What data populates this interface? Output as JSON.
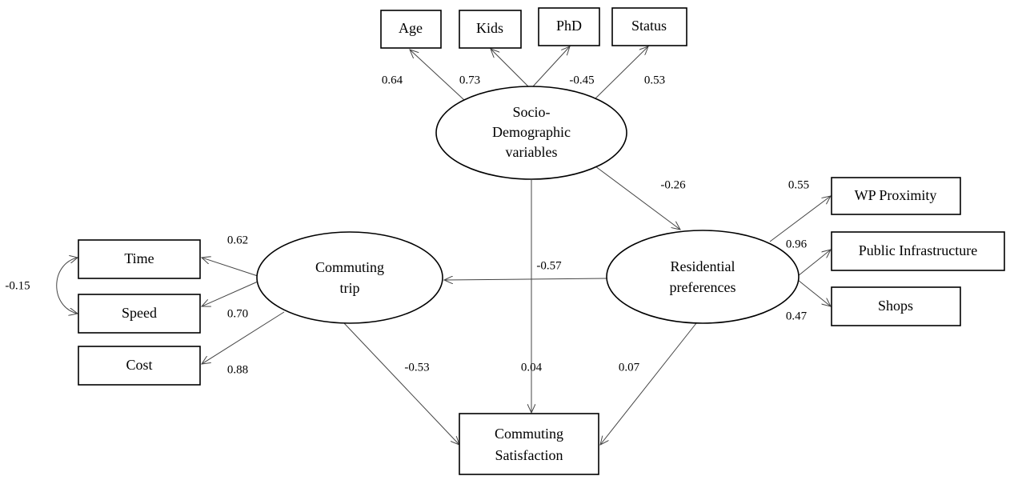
{
  "nodes": [
    {
      "id": "age",
      "lines": [
        "Age"
      ]
    },
    {
      "id": "kids",
      "lines": [
        "Kids"
      ]
    },
    {
      "id": "phd",
      "lines": [
        "PhD"
      ]
    },
    {
      "id": "status",
      "lines": [
        "Status"
      ]
    },
    {
      "id": "socio",
      "lines": [
        "Socio-",
        "Demographic",
        "variables"
      ]
    },
    {
      "id": "residential",
      "lines": [
        "Residential",
        "preferences"
      ]
    },
    {
      "id": "commuting",
      "lines": [
        "Commuting",
        "trip"
      ]
    },
    {
      "id": "wp",
      "lines": [
        "WP Proximity"
      ]
    },
    {
      "id": "public",
      "lines": [
        "Public Infrastructure"
      ]
    },
    {
      "id": "shops",
      "lines": [
        "Shops"
      ]
    },
    {
      "id": "time",
      "lines": [
        "Time"
      ]
    },
    {
      "id": "speed",
      "lines": [
        "Speed"
      ]
    },
    {
      "id": "cost",
      "lines": [
        "Cost"
      ]
    },
    {
      "id": "satisfaction",
      "lines": [
        "Commuting",
        "Satisfaction"
      ]
    }
  ],
  "edges": [
    {
      "from": "socio",
      "to": "age",
      "label": "0.64"
    },
    {
      "from": "socio",
      "to": "kids",
      "label": "0.73"
    },
    {
      "from": "socio",
      "to": "phd",
      "label": "-0.45"
    },
    {
      "from": "socio",
      "to": "status",
      "label": "0.53"
    },
    {
      "from": "socio",
      "to": "residential",
      "label": "-0.26"
    },
    {
      "from": "residential",
      "to": "wp",
      "label": "0.55"
    },
    {
      "from": "residential",
      "to": "public",
      "label": "0.96"
    },
    {
      "from": "residential",
      "to": "shops",
      "label": "0.47"
    },
    {
      "from": "residential",
      "to": "commuting",
      "label": "-0.57"
    },
    {
      "from": "commuting",
      "to": "time",
      "label": "0.62"
    },
    {
      "from": "commuting",
      "to": "speed",
      "label": "0.70"
    },
    {
      "from": "commuting",
      "to": "cost",
      "label": "0.88"
    },
    {
      "from": "commuting",
      "to": "satisfaction",
      "label": "-0.53"
    },
    {
      "from": "socio",
      "to": "satisfaction",
      "label": "0.04"
    },
    {
      "from": "residential",
      "to": "satisfaction",
      "label": "0.07"
    },
    {
      "from": "time",
      "to": "speed",
      "label": "-0.15"
    }
  ]
}
